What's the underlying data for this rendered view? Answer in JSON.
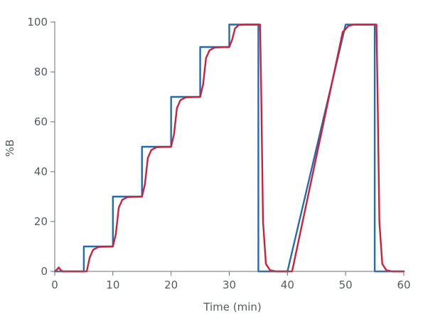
{
  "chart_data": {
    "type": "line",
    "title": "",
    "xlabel": "Time (min)",
    "ylabel": "%B",
    "xlim": [
      0,
      60
    ],
    "ylim": [
      0,
      100
    ],
    "x_ticks": [
      0,
      10,
      20,
      30,
      40,
      50,
      60
    ],
    "y_ticks": [
      0,
      20,
      40,
      60,
      80,
      100
    ],
    "grid": false,
    "legend": "none",
    "series": [
      {
        "color": "#1f6db0",
        "points": [
          [
            0,
            0
          ],
          [
            5,
            0
          ],
          [
            5,
            10
          ],
          [
            10,
            10
          ],
          [
            10,
            30
          ],
          [
            15,
            30
          ],
          [
            15,
            50
          ],
          [
            20,
            50
          ],
          [
            20,
            70
          ],
          [
            25,
            70
          ],
          [
            25,
            90
          ],
          [
            30,
            90
          ],
          [
            30,
            99
          ],
          [
            35,
            99
          ],
          [
            35,
            0
          ],
          [
            40,
            0
          ],
          [
            50,
            99
          ],
          [
            55,
            99
          ],
          [
            55,
            0
          ],
          [
            60,
            0
          ]
        ]
      },
      {
        "color": "#d11f3b",
        "points": [
          [
            0,
            0
          ],
          [
            0.4,
            0.8
          ],
          [
            0.7,
            1.6
          ],
          [
            1.0,
            0.6
          ],
          [
            1.4,
            0
          ],
          [
            5.5,
            0
          ],
          [
            6.0,
            5.5
          ],
          [
            6.6,
            8.7
          ],
          [
            7.5,
            9.8
          ],
          [
            10,
            10
          ],
          [
            10.5,
            15
          ],
          [
            11.0,
            25.5
          ],
          [
            11.6,
            28.7
          ],
          [
            12.5,
            29.8
          ],
          [
            15,
            30
          ],
          [
            15.5,
            35
          ],
          [
            16.0,
            45.5
          ],
          [
            16.6,
            48.7
          ],
          [
            17.5,
            49.8
          ],
          [
            20,
            50
          ],
          [
            20.5,
            55
          ],
          [
            21.0,
            65.5
          ],
          [
            21.6,
            68.7
          ],
          [
            22.5,
            69.8
          ],
          [
            25,
            70
          ],
          [
            25.5,
            75
          ],
          [
            26.0,
            85.5
          ],
          [
            26.6,
            88.7
          ],
          [
            27.5,
            89.8
          ],
          [
            30,
            90
          ],
          [
            30.5,
            93
          ],
          [
            31.0,
            97.5
          ],
          [
            31.6,
            98.8
          ],
          [
            32.5,
            99
          ],
          [
            35.3,
            99
          ],
          [
            35.5,
            70
          ],
          [
            35.8,
            20
          ],
          [
            36.3,
            3
          ],
          [
            37.0,
            0.5
          ],
          [
            38,
            0
          ],
          [
            40.8,
            0
          ],
          [
            49.5,
            96
          ],
          [
            50.5,
            98.5
          ],
          [
            51.5,
            99
          ],
          [
            55.3,
            99
          ],
          [
            55.5,
            70
          ],
          [
            55.8,
            20
          ],
          [
            56.3,
            3
          ],
          [
            57.0,
            0.5
          ],
          [
            58,
            0
          ],
          [
            60,
            0
          ]
        ]
      }
    ]
  }
}
